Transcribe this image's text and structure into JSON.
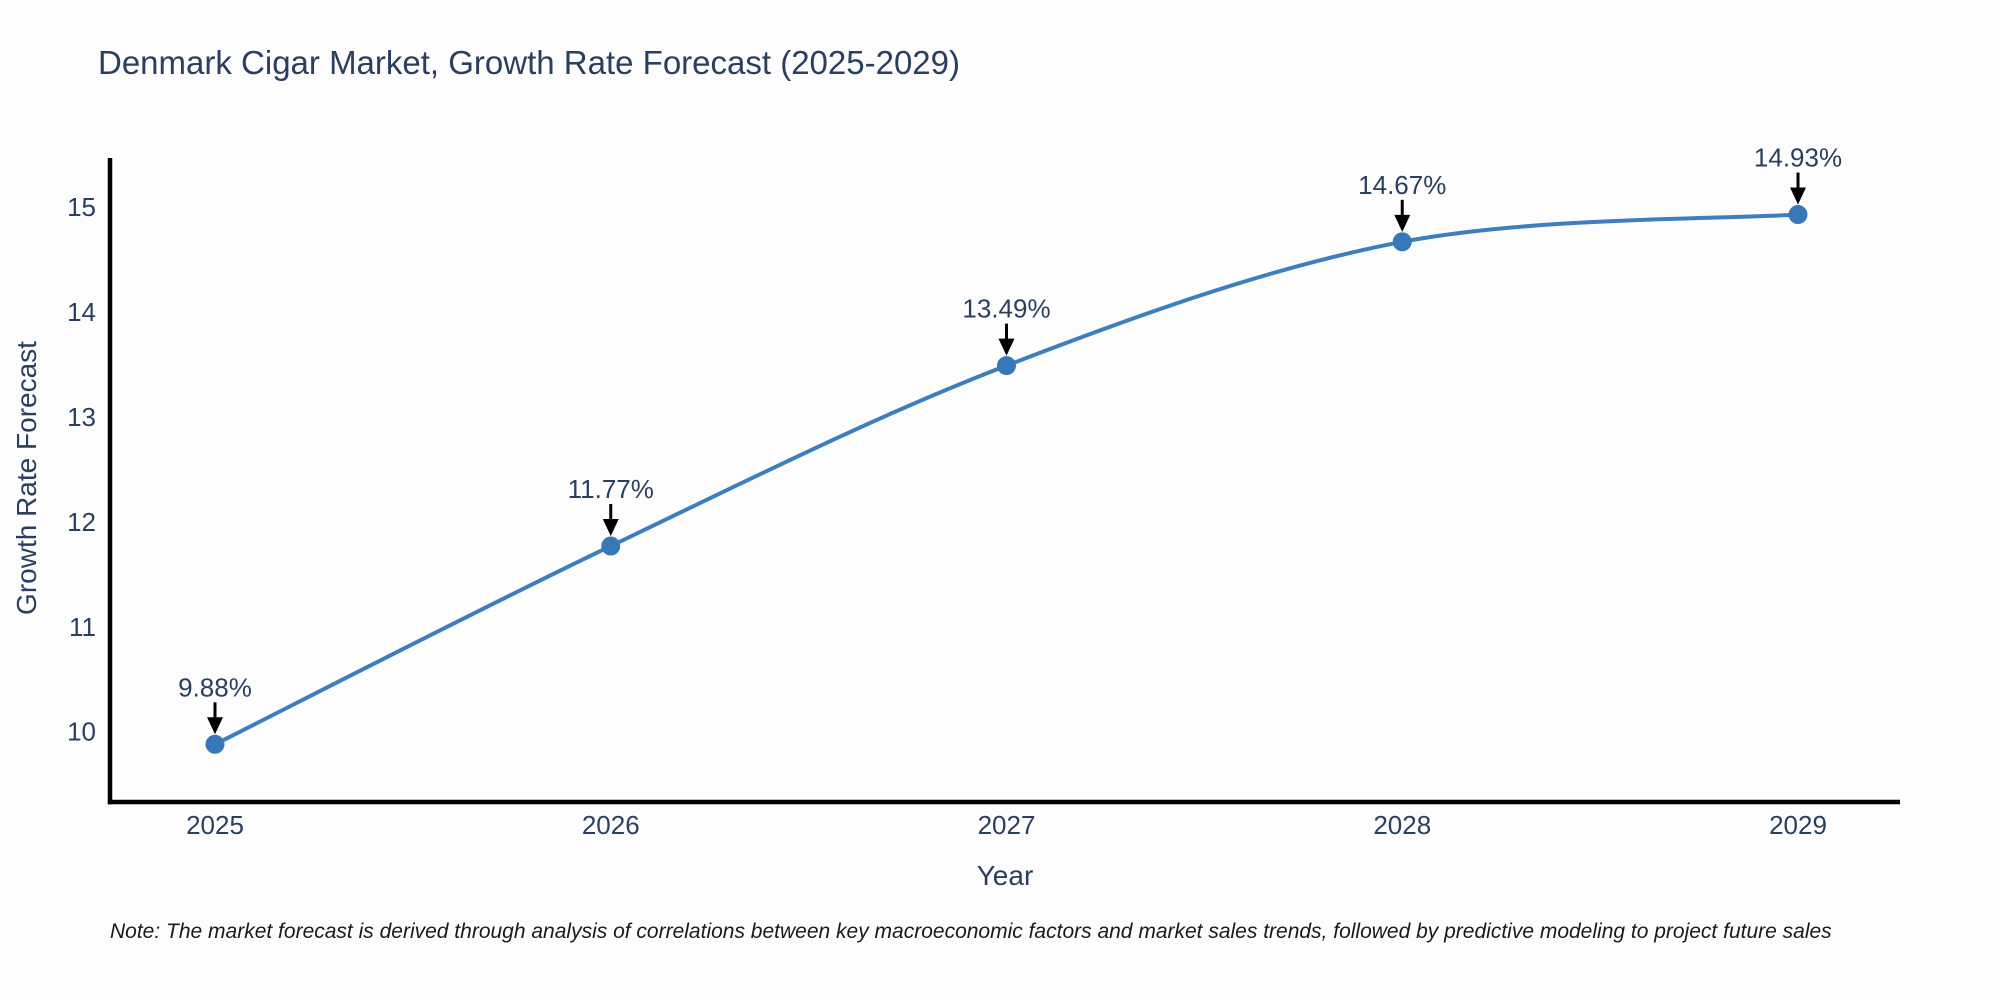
{
  "note": "Note: The market forecast is derived through analysis of correlations between key macroeconomic factors and market sales trends, followed by predictive modeling to project future sales",
  "chart_data": {
    "type": "line",
    "title": "Denmark Cigar Market, Growth Rate Forecast (2025-2029)",
    "xlabel": "Year",
    "ylabel": "Growth Rate Forecast",
    "categories": [
      "2025",
      "2026",
      "2027",
      "2028",
      "2029"
    ],
    "values": [
      9.88,
      11.77,
      13.49,
      14.67,
      14.93
    ],
    "point_labels": [
      "9.88%",
      "11.77%",
      "13.49%",
      "14.67%",
      "14.93%"
    ],
    "yticks": [
      10,
      11,
      12,
      13,
      14,
      15
    ],
    "ylim": [
      9.33,
      15.45
    ],
    "grid": false,
    "legend": "none",
    "line_shape": "spline",
    "annotations": "arrow-down-to-point",
    "colors": {
      "line": "#3d7ebf",
      "marker": "#3878b8",
      "axis": "#000000",
      "tick_text": "#2a3f5f",
      "title_text": "#2a3f5f",
      "annotation_text": "#2a3f5f",
      "annotation_arrow": "#000000",
      "note_text": "#1a1a1a",
      "background": "#fdfdfe"
    }
  }
}
